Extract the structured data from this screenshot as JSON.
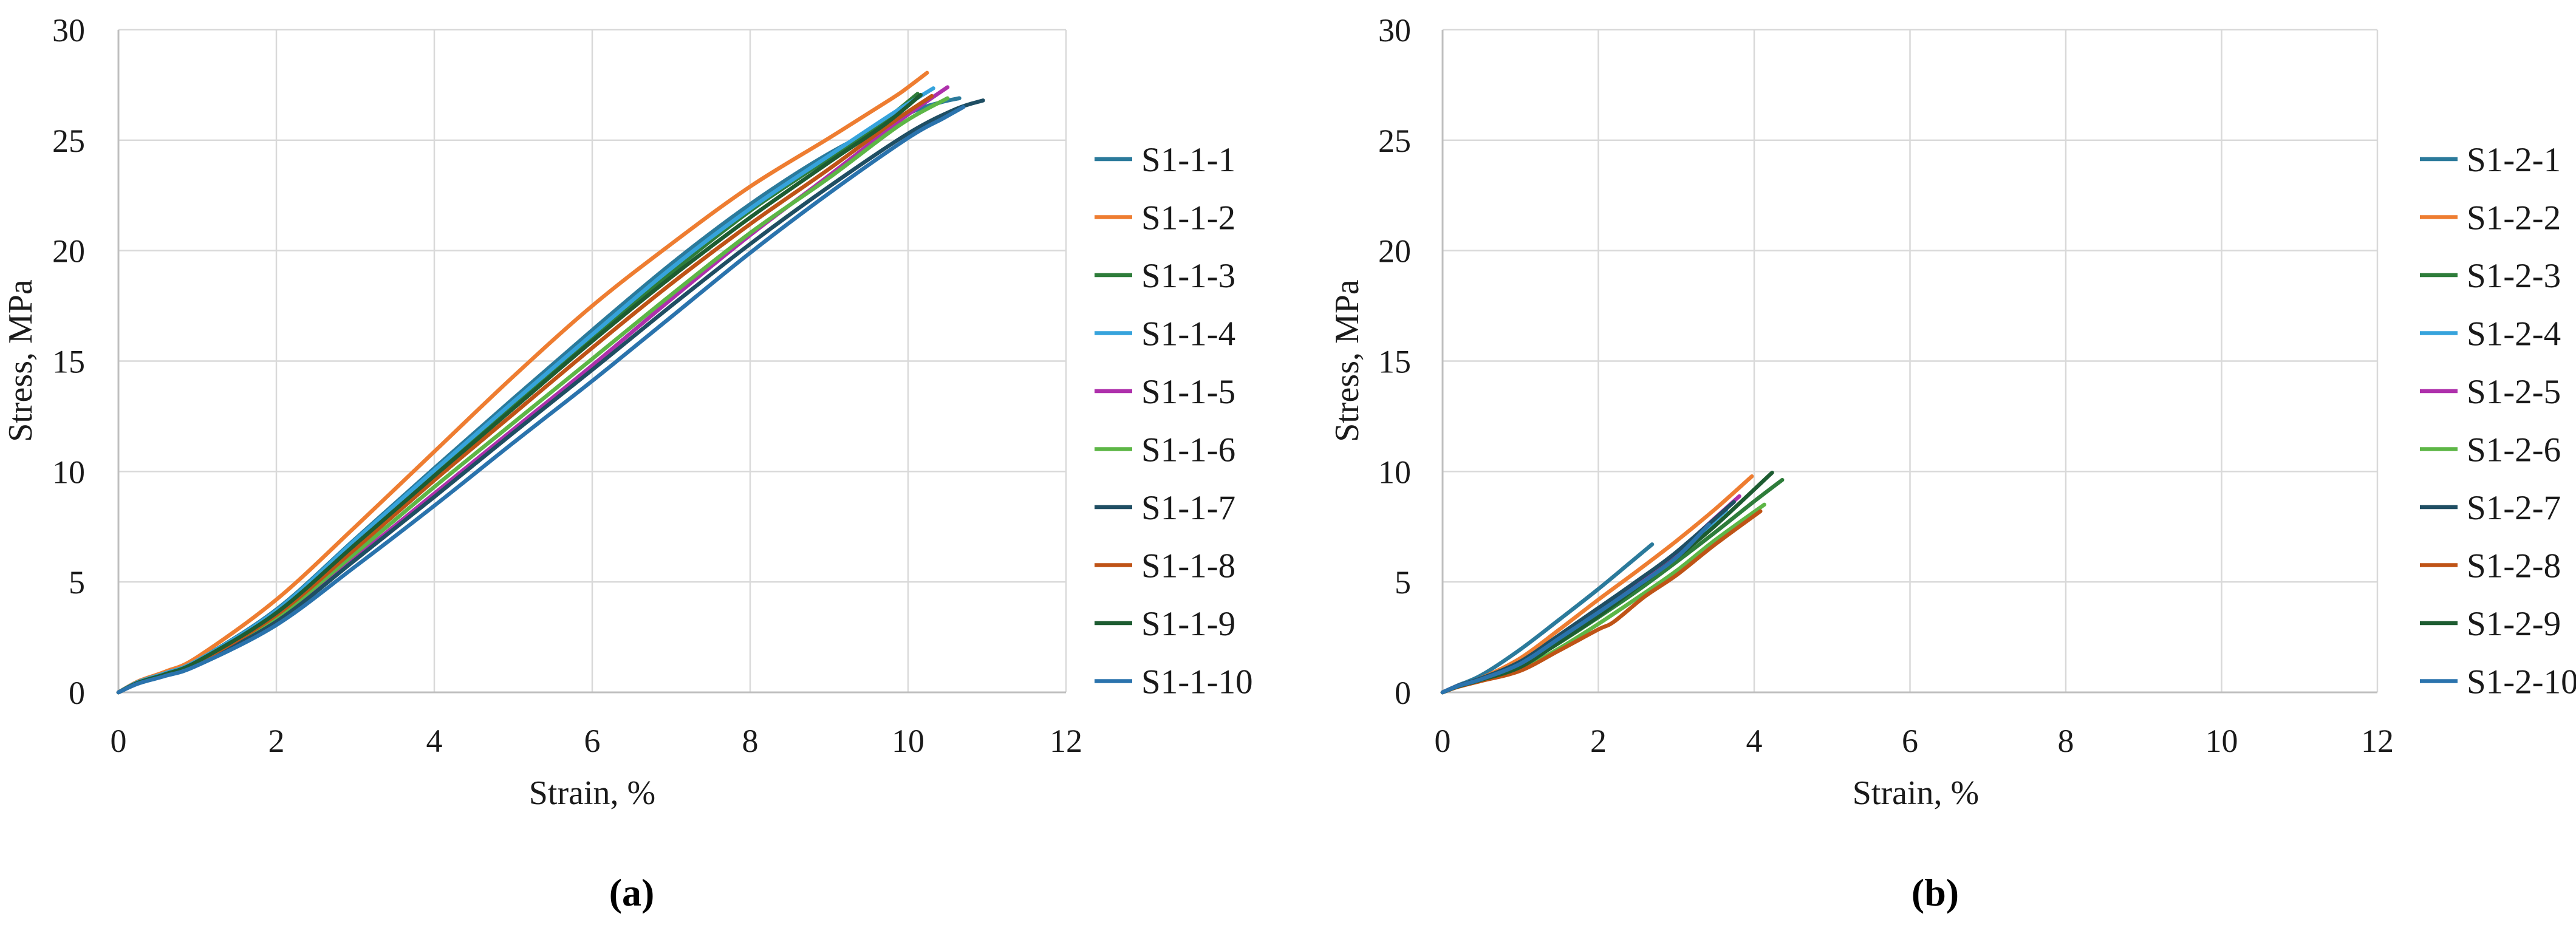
{
  "figure": {
    "background": "#ffffff",
    "grid_color": "#d9d9d9",
    "axis_color": "#bfbfbf",
    "text_color": "#1a1a1a",
    "caption_a": "(a)",
    "caption_b": "(b)"
  },
  "chart_data": [
    {
      "id": "a",
      "type": "line",
      "title": "",
      "caption": "(a)",
      "xlabel": "Strain, %",
      "ylabel": "Stress, MPa",
      "xlim": [
        0,
        12
      ],
      "ylim": [
        0,
        30
      ],
      "xticks": [
        0,
        2,
        4,
        6,
        8,
        10,
        12
      ],
      "yticks": [
        0,
        5,
        10,
        15,
        20,
        25,
        30
      ],
      "grid": true,
      "legend_position": "right",
      "series": [
        {
          "name": "S1-1-1",
          "color": "#2b7a9b",
          "points": [
            [
              0,
              0
            ],
            [
              0.25,
              0.45
            ],
            [
              0.6,
              0.85
            ],
            [
              1,
              1.45
            ],
            [
              2,
              3.75
            ],
            [
              3,
              6.95
            ],
            [
              4,
              10.15
            ],
            [
              5,
              13.3
            ],
            [
              6,
              16.4
            ],
            [
              7,
              19.4
            ],
            [
              8,
              22.1
            ],
            [
              9,
              24.4
            ],
            [
              10,
              26.2
            ],
            [
              10.4,
              26.7
            ],
            [
              10.65,
              26.9
            ]
          ]
        },
        {
          "name": "S1-1-2",
          "color": "#ee7d31",
          "points": [
            [
              0,
              0
            ],
            [
              0.25,
              0.5
            ],
            [
              0.6,
              0.95
            ],
            [
              1,
              1.6
            ],
            [
              2,
              4.2
            ],
            [
              3,
              7.5
            ],
            [
              4,
              10.9
            ],
            [
              5,
              14.3
            ],
            [
              6,
              17.5
            ],
            [
              7,
              20.3
            ],
            [
              8,
              22.9
            ],
            [
              9,
              25.1
            ],
            [
              9.8,
              26.9
            ],
            [
              10.0,
              27.4
            ],
            [
              10.24,
              28.05
            ]
          ]
        },
        {
          "name": "S1-1-3",
          "color": "#2e7d3a",
          "points": [
            [
              0,
              0
            ],
            [
              0.25,
              0.45
            ],
            [
              0.6,
              0.85
            ],
            [
              1,
              1.42
            ],
            [
              2,
              3.65
            ],
            [
              3,
              6.8
            ],
            [
              4,
              9.95
            ],
            [
              5,
              13.0
            ],
            [
              6,
              16.0
            ],
            [
              7,
              19.0
            ],
            [
              8,
              21.8
            ],
            [
              9,
              24.2
            ],
            [
              9.7,
              25.9
            ],
            [
              10.12,
              27.1
            ]
          ]
        },
        {
          "name": "S1-1-4",
          "color": "#36a3dc",
          "points": [
            [
              0,
              0
            ],
            [
              0.25,
              0.47
            ],
            [
              0.6,
              0.88
            ],
            [
              1,
              1.45
            ],
            [
              2,
              3.7
            ],
            [
              3,
              6.9
            ],
            [
              4,
              10.05
            ],
            [
              5,
              13.15
            ],
            [
              6,
              16.2
            ],
            [
              7,
              19.2
            ],
            [
              8,
              21.9
            ],
            [
              9,
              24.3
            ],
            [
              9.8,
              26.2
            ],
            [
              10.32,
              27.35
            ]
          ]
        },
        {
          "name": "S1-1-5",
          "color": "#ae30ab",
          "points": [
            [
              0,
              0
            ],
            [
              0.25,
              0.42
            ],
            [
              0.6,
              0.8
            ],
            [
              1,
              1.32
            ],
            [
              2,
              3.3
            ],
            [
              3,
              6.1
            ],
            [
              4,
              9.0
            ],
            [
              5,
              11.9
            ],
            [
              6,
              14.8
            ],
            [
              7,
              17.8
            ],
            [
              8,
              20.7
            ],
            [
              9,
              23.4
            ],
            [
              9.9,
              25.9
            ],
            [
              10.5,
              27.4
            ]
          ]
        },
        {
          "name": "S1-1-6",
          "color": "#5db646",
          "points": [
            [
              0,
              0
            ],
            [
              0.25,
              0.44
            ],
            [
              0.6,
              0.82
            ],
            [
              1,
              1.36
            ],
            [
              2,
              3.4
            ],
            [
              3,
              6.3
            ],
            [
              4,
              9.3
            ],
            [
              5,
              12.2
            ],
            [
              6,
              15.1
            ],
            [
              7,
              18.0
            ],
            [
              8,
              20.8
            ],
            [
              9,
              23.3
            ],
            [
              9.9,
              25.7
            ],
            [
              10.5,
              26.9
            ]
          ]
        },
        {
          "name": "S1-1-7",
          "color": "#1f4e63",
          "points": [
            [
              0,
              0
            ],
            [
              0.25,
              0.4
            ],
            [
              0.6,
              0.78
            ],
            [
              1,
              1.28
            ],
            [
              2,
              3.2
            ],
            [
              3,
              6.0
            ],
            [
              4,
              8.85
            ],
            [
              5,
              11.75
            ],
            [
              6,
              14.6
            ],
            [
              7,
              17.5
            ],
            [
              8,
              20.3
            ],
            [
              9,
              22.9
            ],
            [
              10,
              25.3
            ],
            [
              10.6,
              26.4
            ],
            [
              10.95,
              26.8
            ]
          ]
        },
        {
          "name": "S1-1-8",
          "color": "#bf5316",
          "points": [
            [
              0,
              0
            ],
            [
              0.25,
              0.43
            ],
            [
              0.6,
              0.8
            ],
            [
              1,
              1.35
            ],
            [
              2,
              3.5
            ],
            [
              3,
              6.5
            ],
            [
              4,
              9.6
            ],
            [
              5,
              12.6
            ],
            [
              6,
              15.6
            ],
            [
              7,
              18.5
            ],
            [
              8,
              21.2
            ],
            [
              9,
              23.7
            ],
            [
              9.8,
              25.8
            ],
            [
              10.3,
              27.0
            ]
          ]
        },
        {
          "name": "S1-1-9",
          "color": "#1d5c31",
          "points": [
            [
              0,
              0
            ],
            [
              0.25,
              0.44
            ],
            [
              0.6,
              0.83
            ],
            [
              1,
              1.4
            ],
            [
              2,
              3.6
            ],
            [
              3,
              6.7
            ],
            [
              4,
              9.8
            ],
            [
              5,
              12.85
            ],
            [
              6,
              15.9
            ],
            [
              7,
              18.8
            ],
            [
              8,
              21.5
            ],
            [
              9,
              24.0
            ],
            [
              9.7,
              25.7
            ],
            [
              10.16,
              27.05
            ]
          ]
        },
        {
          "name": "S1-1-10",
          "color": "#2a73ad",
          "points": [
            [
              0,
              0
            ],
            [
              0.25,
              0.4
            ],
            [
              0.6,
              0.75
            ],
            [
              1,
              1.22
            ],
            [
              2,
              3.05
            ],
            [
              3,
              5.7
            ],
            [
              4,
              8.45
            ],
            [
              5,
              11.3
            ],
            [
              6,
              14.1
            ],
            [
              7,
              17.0
            ],
            [
              8,
              19.9
            ],
            [
              9,
              22.6
            ],
            [
              10,
              25.1
            ],
            [
              10.45,
              26.0
            ],
            [
              10.7,
              26.5
            ]
          ]
        }
      ]
    },
    {
      "id": "b",
      "type": "line",
      "title": "",
      "caption": "(b)",
      "xlabel": "Strain, %",
      "ylabel": "Stress, MPa",
      "xlim": [
        0,
        12
      ],
      "ylim": [
        0,
        30
      ],
      "xticks": [
        0,
        2,
        4,
        6,
        8,
        10,
        12
      ],
      "yticks": [
        0,
        5,
        10,
        15,
        20,
        25,
        30
      ],
      "grid": true,
      "legend_position": "right",
      "series": [
        {
          "name": "S1-2-1",
          "color": "#2b7a9b",
          "points": [
            [
              0,
              0
            ],
            [
              0.2,
              0.32
            ],
            [
              0.5,
              0.78
            ],
            [
              1,
              1.95
            ],
            [
              1.5,
              3.3
            ],
            [
              2,
              4.68
            ],
            [
              2.4,
              5.85
            ],
            [
              2.69,
              6.7
            ]
          ]
        },
        {
          "name": "S1-2-2",
          "color": "#ee7d31",
          "points": [
            [
              0,
              0
            ],
            [
              0.2,
              0.3
            ],
            [
              0.5,
              0.65
            ],
            [
              1,
              1.55
            ],
            [
              1.5,
              2.85
            ],
            [
              2,
              4.2
            ],
            [
              2.5,
              5.5
            ],
            [
              3,
              6.85
            ],
            [
              3.5,
              8.3
            ],
            [
              3.97,
              9.78
            ]
          ]
        },
        {
          "name": "S1-2-3",
          "color": "#2e7d3a",
          "points": [
            [
              0,
              0
            ],
            [
              0.2,
              0.28
            ],
            [
              0.5,
              0.58
            ],
            [
              1,
              1.2
            ],
            [
              1.5,
              2.25
            ],
            [
              2,
              3.4
            ],
            [
              2.5,
              4.6
            ],
            [
              3,
              5.9
            ],
            [
              3.5,
              7.25
            ],
            [
              4,
              8.65
            ],
            [
              4.36,
              9.62
            ]
          ]
        },
        {
          "name": "S1-2-4",
          "color": "#36a3dc",
          "points": [
            [
              0,
              0
            ],
            [
              0.2,
              0.3
            ],
            [
              0.5,
              0.62
            ],
            [
              1,
              1.35
            ],
            [
              1.5,
              2.5
            ],
            [
              2,
              3.7
            ],
            [
              2.5,
              4.92
            ],
            [
              3,
              6.2
            ],
            [
              3.64,
              8.25
            ]
          ]
        },
        {
          "name": "S1-2-5",
          "color": "#ae30ab",
          "points": [
            [
              0,
              0
            ],
            [
              0.2,
              0.3
            ],
            [
              0.5,
              0.63
            ],
            [
              1,
              1.38
            ],
            [
              1.5,
              2.55
            ],
            [
              2,
              3.78
            ],
            [
              2.5,
              5.0
            ],
            [
              3,
              6.32
            ],
            [
              3.5,
              7.9
            ],
            [
              3.81,
              8.88
            ]
          ]
        },
        {
          "name": "S1-2-6",
          "color": "#5db646",
          "points": [
            [
              0,
              0
            ],
            [
              0.2,
              0.26
            ],
            [
              0.5,
              0.55
            ],
            [
              1,
              1.05
            ],
            [
              1.5,
              2.0
            ],
            [
              2,
              3.1
            ],
            [
              2.5,
              4.28
            ],
            [
              3,
              5.5
            ],
            [
              3.5,
              6.9
            ],
            [
              4.13,
              8.5
            ]
          ]
        },
        {
          "name": "S1-2-7",
          "color": "#1f4e63",
          "points": [
            [
              0,
              0
            ],
            [
              0.2,
              0.3
            ],
            [
              0.5,
              0.64
            ],
            [
              1,
              1.4
            ],
            [
              1.5,
              2.6
            ],
            [
              2,
              3.82
            ],
            [
              2.5,
              5.05
            ],
            [
              3,
              6.35
            ],
            [
              3.74,
              8.62
            ]
          ]
        },
        {
          "name": "S1-2-8",
          "color": "#bf5316",
          "points": [
            [
              0,
              0
            ],
            [
              0.2,
              0.25
            ],
            [
              0.5,
              0.52
            ],
            [
              1,
              0.98
            ],
            [
              1.5,
              1.9
            ],
            [
              2,
              2.85
            ],
            [
              2.2,
              3.2
            ],
            [
              2.6,
              4.35
            ],
            [
              3,
              5.3
            ],
            [
              3.5,
              6.7
            ],
            [
              4.08,
              8.2
            ]
          ]
        },
        {
          "name": "S1-2-9",
          "color": "#1d5c31",
          "points": [
            [
              0,
              0
            ],
            [
              0.2,
              0.27
            ],
            [
              0.5,
              0.57
            ],
            [
              1,
              1.15
            ],
            [
              1.5,
              2.28
            ],
            [
              2,
              3.45
            ],
            [
              2.5,
              4.78
            ],
            [
              3,
              6.1
            ],
            [
              3.5,
              7.55
            ],
            [
              4.23,
              9.95
            ]
          ]
        },
        {
          "name": "S1-2-10",
          "color": "#2a73ad",
          "points": [
            [
              0,
              0
            ],
            [
              0.2,
              0.29
            ],
            [
              0.5,
              0.6
            ],
            [
              1,
              1.3
            ],
            [
              1.5,
              2.45
            ],
            [
              2,
              3.62
            ],
            [
              2.5,
              4.82
            ],
            [
              3,
              6.1
            ],
            [
              3.42,
              7.6
            ]
          ]
        }
      ]
    }
  ]
}
